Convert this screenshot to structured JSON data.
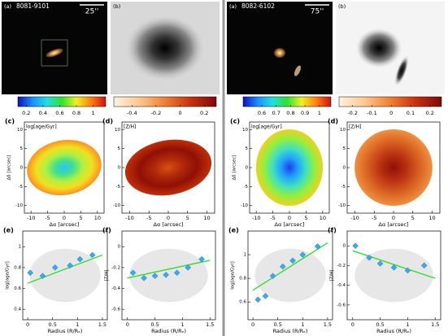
{
  "images": [
    {
      "label": "(a)",
      "id": "8081-9101",
      "scale": "25''",
      "background": "#050505"
    },
    {
      "label": "(b)",
      "background": "#d8d8d8"
    },
    {
      "label": "(a)",
      "id": "8082-6102",
      "scale": "75''",
      "background": "#050505"
    },
    {
      "label": "(b)",
      "background": "#f4f4f4"
    }
  ],
  "chart_data": [
    {
      "type": "colorbar",
      "colors": [
        "#1010c0",
        "#1890ff",
        "#20e0e0",
        "#30e030",
        "#f0f020",
        "#ff8010",
        "#d01010"
      ],
      "xlim": [
        0.1,
        1.15
      ],
      "xticks": [
        0.2,
        0.4,
        0.6,
        0.8,
        1.0
      ]
    },
    {
      "type": "colorbar",
      "colors": [
        "#fff2e0",
        "#fbc890",
        "#f08030",
        "#c83010",
        "#800808"
      ],
      "xlim": [
        -0.55,
        0.3
      ],
      "xticks": [
        -0.4,
        -0.2,
        0.0,
        0.2
      ]
    },
    {
      "type": "map",
      "label": "(c)",
      "title": "log[age/Gyr]",
      "xlabel": "Δα [arcsec]",
      "ylabel": "Δδ [arcsec]",
      "colors": [
        "#30c0ff",
        "#40e090",
        "#b0f040",
        "#f0e020",
        "#ff9020"
      ],
      "xlim": [
        -12,
        12
      ],
      "ylim": [
        -12,
        12
      ],
      "xticks": [
        -10,
        -5,
        0,
        5,
        10
      ],
      "yticks": [
        -10,
        -5,
        0,
        5,
        10
      ]
    },
    {
      "type": "map",
      "label": "(d)",
      "title": "[Z/H]",
      "xlabel": "Δα [arcsec]",
      "colors": [
        "#d85010",
        "#b02808",
        "#901005",
        "#c03008"
      ],
      "xlim": [
        -12,
        12
      ],
      "ylim": [
        -12,
        12
      ],
      "xticks": [
        -10,
        -5,
        0,
        5,
        10
      ],
      "yticks": [
        -10,
        -5,
        0,
        5,
        10
      ]
    },
    {
      "type": "scatter",
      "label": "(e)",
      "xlabel": "Radius (R/Rₑ)",
      "ylabel": "log[age/Gyr]",
      "xlim": [
        -0.1,
        1.6
      ],
      "ylim": [
        0.3,
        1.15
      ],
      "xticks": [
        0.0,
        0.5,
        1.0,
        1.5
      ],
      "yticks": [
        0.4,
        0.6,
        0.8,
        1.0
      ],
      "series": [
        {
          "style": "line",
          "color": "#33dd33",
          "x": [
            0,
            1.5
          ],
          "values": [
            0.65,
            0.92
          ]
        },
        {
          "style": "diamond",
          "color": "#3aaaf0",
          "x": [
            0.05,
            0.3,
            0.55,
            0.85,
            1.05,
            1.3
          ],
          "values": [
            0.75,
            0.72,
            0.8,
            0.82,
            0.88,
            0.92
          ]
        }
      ]
    },
    {
      "type": "scatter",
      "label": "(f)",
      "xlabel": "Radius (R/Rₑ)",
      "ylabel": "[Z/H]",
      "xlim": [
        -0.1,
        1.6
      ],
      "ylim": [
        -0.7,
        0.15
      ],
      "xticks": [
        0.0,
        0.5,
        1.0,
        1.5
      ],
      "yticks": [
        -0.6,
        -0.4,
        -0.2,
        0.0
      ],
      "series": [
        {
          "style": "line",
          "color": "#33dd33",
          "x": [
            0,
            1.5
          ],
          "values": [
            -0.3,
            -0.13
          ]
        },
        {
          "style": "diamond",
          "color": "#3aaaf0",
          "x": [
            0.1,
            0.3,
            0.5,
            0.7,
            0.9,
            1.1,
            1.35
          ],
          "values": [
            -0.25,
            -0.3,
            -0.28,
            -0.27,
            -0.25,
            -0.2,
            -0.12
          ]
        }
      ]
    },
    {
      "type": "colorbar",
      "colors": [
        "#1010c0",
        "#1890ff",
        "#20e0e0",
        "#30e030",
        "#f0f020",
        "#ff8010",
        "#d01010"
      ],
      "xlim": [
        0.47,
        1.08
      ],
      "xticks": [
        0.6,
        0.7,
        0.8,
        0.9,
        1.0
      ]
    },
    {
      "type": "colorbar",
      "colors": [
        "#fff2e0",
        "#fbc890",
        "#f08030",
        "#c83010",
        "#800808"
      ],
      "xlim": [
        -0.27,
        0.26
      ],
      "xticks": [
        -0.2,
        -0.1,
        0.0,
        0.1,
        0.2
      ]
    },
    {
      "type": "map",
      "label": "(c)",
      "title": "log[age/Gyr]",
      "xlabel": "Δα [arcsec]",
      "ylabel": "Δδ [arcsec]",
      "colors": [
        "#2040e0",
        "#20a0ff",
        "#40e0c0",
        "#90f040",
        "#f0d020"
      ],
      "xlim": [
        -12,
        12
      ],
      "ylim": [
        -12,
        12
      ],
      "xticks": [
        -10,
        -5,
        0,
        5,
        10
      ],
      "yticks": [
        -10,
        -5,
        0,
        5,
        10
      ]
    },
    {
      "type": "map",
      "label": "(d)",
      "title": "[Z/H]",
      "xlabel": "Δα [arcsec]",
      "colors": [
        "#901005",
        "#b83010",
        "#d86020",
        "#f09040"
      ],
      "xlim": [
        -12,
        12
      ],
      "ylim": [
        -12,
        12
      ],
      "xticks": [
        -10,
        -5,
        0,
        5,
        10
      ],
      "yticks": [
        -10,
        -5,
        0,
        5,
        10
      ]
    },
    {
      "type": "scatter",
      "label": "(e)",
      "xlabel": "Radius (R/Rₑ)",
      "ylabel": "log[age/Gyr]",
      "xlim": [
        -0.1,
        1.6
      ],
      "ylim": [
        0.45,
        1.2
      ],
      "xticks": [
        0.0,
        0.5,
        1.0,
        1.5
      ],
      "yticks": [
        0.6,
        0.8,
        1.0
      ],
      "series": [
        {
          "style": "line",
          "color": "#33dd33",
          "x": [
            0,
            1.5
          ],
          "values": [
            0.7,
            1.1
          ]
        },
        {
          "style": "diamond",
          "color": "#3aaaf0",
          "x": [
            0.1,
            0.25,
            0.4,
            0.6,
            0.8,
            1.0,
            1.3
          ],
          "values": [
            0.62,
            0.65,
            0.82,
            0.9,
            0.95,
            1.0,
            1.07
          ]
        }
      ]
    },
    {
      "type": "scatter",
      "label": "(f)",
      "xlabel": "Radius (R/Rₑ)",
      "ylabel": "[Z/H]",
      "xlim": [
        -0.1,
        1.6
      ],
      "ylim": [
        -0.75,
        0.15
      ],
      "xticks": [
        0.0,
        0.5,
        1.0,
        1.5
      ],
      "yticks": [
        -0.6,
        -0.4,
        -0.2,
        0.0
      ],
      "series": [
        {
          "style": "line",
          "color": "#33dd33",
          "x": [
            0,
            1.5
          ],
          "values": [
            -0.05,
            -0.33
          ]
        },
        {
          "style": "diamond",
          "color": "#3aaaf0",
          "x": [
            0.05,
            0.3,
            0.5,
            0.75,
            1.0,
            1.3
          ],
          "values": [
            0.0,
            -0.12,
            -0.18,
            -0.22,
            -0.25,
            -0.2
          ]
        }
      ]
    }
  ]
}
